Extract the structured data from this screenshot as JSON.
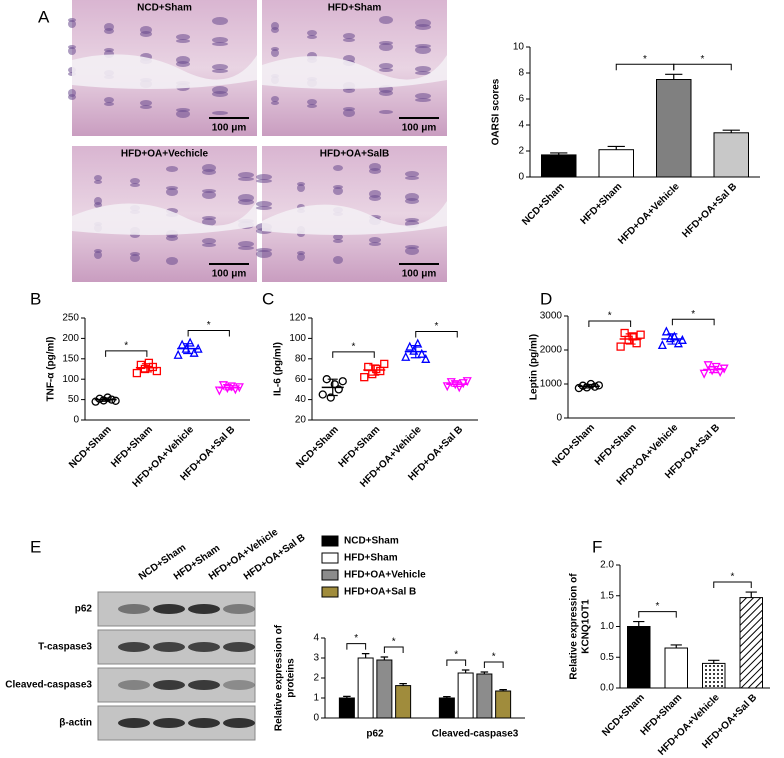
{
  "figure": {
    "panels": [
      "A",
      "B",
      "C",
      "D",
      "E",
      "F"
    ]
  },
  "micrographs": [
    {
      "label": "NCD+Sham",
      "scale": "100 μm"
    },
    {
      "label": "HFD+Sham",
      "scale": "100 μm"
    },
    {
      "label": "HFD+OA+Vechicle",
      "scale": "100 μm"
    },
    {
      "label": "HFD+OA+SalB",
      "scale": "100 μm"
    }
  ],
  "blot": {
    "lanes": [
      "NCD+Sham",
      "HFD+Sham",
      "HFD+OA+Vehicle",
      "HFD+OA+Sal B"
    ],
    "rows": [
      "p62",
      "T-caspase3",
      "Cleaved-caspase3",
      "β-actin"
    ]
  },
  "chart_data": [
    {
      "type": "bar",
      "ylabel": [
        "OARSI scores"
      ],
      "categories": [
        "NCD+Sham",
        "HFD+Sham",
        "HFD+OA+Vehicle",
        "HFD+OA+Sal B"
      ],
      "values": [
        1.7,
        2.1,
        7.5,
        3.4
      ],
      "errors": [
        0.15,
        0.25,
        0.4,
        0.2
      ],
      "colors": [
        "#000000",
        "#ffffff",
        "#808080",
        "#c8c8c8"
      ],
      "patterns": [
        "solid",
        "solid",
        "solid",
        "solid"
      ],
      "ylim": [
        0,
        10
      ],
      "yticks": [
        0,
        2,
        4,
        6,
        8,
        10
      ],
      "annotations": [
        "*",
        "*"
      ]
    },
    {
      "type": "dot",
      "ylabel": [
        "TNF-α (pg/ml)"
      ],
      "categories": [
        "NCD+Sham",
        "HFD+Sham",
        "HFD+OA+Vehicle",
        "HFD+OA+Sal B"
      ],
      "points": [
        [
          45,
          52,
          48,
          55,
          50,
          47
        ],
        [
          115,
          135,
          125,
          140,
          130,
          120
        ],
        [
          160,
          185,
          175,
          190,
          165,
          175
        ],
        [
          72,
          85,
          78,
          82,
          75,
          80
        ]
      ],
      "values": [
        50,
        128,
        175,
        79
      ],
      "errors": [
        4,
        10,
        12,
        5
      ],
      "colors": [
        "#000000",
        "#ff0000",
        "#0000ff",
        "#ff00ff"
      ],
      "markers": [
        "circle",
        "square",
        "triangle",
        "down-triangle"
      ],
      "ylim": [
        0,
        250
      ],
      "yticks": [
        0,
        50,
        100,
        150,
        200,
        250
      ],
      "annotations": [
        "*",
        "*"
      ]
    },
    {
      "type": "dot",
      "ylabel": [
        "IL-6 (pg/ml)"
      ],
      "categories": [
        "NCD+Sham",
        "HFD+Sham",
        "HFD+OA+Vehicle",
        "HFD+OA+Sal B"
      ],
      "points": [
        [
          45,
          60,
          42,
          55,
          50,
          58
        ],
        [
          62,
          72,
          65,
          70,
          68,
          75
        ],
        [
          82,
          92,
          88,
          95,
          85,
          80
        ],
        [
          53,
          57,
          55,
          52,
          56,
          58
        ]
      ],
      "values": [
        52,
        69,
        87,
        55
      ],
      "errors": [
        8,
        5,
        6,
        2
      ],
      "colors": [
        "#000000",
        "#ff0000",
        "#0000ff",
        "#ff00ff"
      ],
      "markers": [
        "circle",
        "square",
        "triangle",
        "down-triangle"
      ],
      "ylim": [
        20,
        120
      ],
      "yticks": [
        20,
        40,
        60,
        80,
        100,
        120
      ],
      "annotations": [
        "*",
        "*"
      ]
    },
    {
      "type": "dot",
      "ylabel": [
        "Leptin (pg/ml)"
      ],
      "categories": [
        "NCD+Sham",
        "HFD+Sham",
        "HFD+OA+Vehicle",
        "HFD+OA+Sal B"
      ],
      "points": [
        [
          880,
          950,
          900,
          1000,
          920,
          960
        ],
        [
          2100,
          2500,
          2300,
          2400,
          2200,
          2450
        ],
        [
          2150,
          2550,
          2350,
          2400,
          2200,
          2300
        ],
        [
          1300,
          1550,
          1400,
          1500,
          1350,
          1450
        ]
      ],
      "values": [
        935,
        2325,
        2325,
        1425
      ],
      "errors": [
        50,
        150,
        150,
        90
      ],
      "colors": [
        "#000000",
        "#ff0000",
        "#0000ff",
        "#ff00ff"
      ],
      "markers": [
        "circle",
        "square",
        "triangle",
        "down-triangle"
      ],
      "ylim": [
        0,
        3000
      ],
      "yticks": [
        0,
        1000,
        2000,
        3000
      ],
      "annotations": [
        "*",
        "*"
      ]
    },
    {
      "type": "grouped_bar",
      "ylabel": [
        "Relative expression of",
        "proteins"
      ],
      "categories": [
        "p62",
        "Cleaved-caspase3"
      ],
      "series": [
        {
          "name": "NCD+Sham",
          "color": "#000000",
          "values": [
            1.0,
            1.0
          ],
          "errors": [
            0.08,
            0.07
          ]
        },
        {
          "name": "HFD+Sham",
          "color": "#ffffff",
          "values": [
            3.0,
            2.25
          ],
          "errors": [
            0.22,
            0.15
          ]
        },
        {
          "name": "HFD+OA+Vehicle",
          "color": "#8c8c8c",
          "values": [
            2.9,
            2.2
          ],
          "errors": [
            0.15,
            0.1
          ]
        },
        {
          "name": "HFD+OA+Sal B",
          "color": "#a08c3c",
          "values": [
            1.62,
            1.35
          ],
          "errors": [
            0.1,
            0.07
          ]
        }
      ],
      "ylim": [
        0,
        4
      ],
      "yticks": [
        0,
        1,
        2,
        3,
        4
      ],
      "annotations": [
        "*",
        "*",
        "*",
        "*"
      ],
      "legend": "top"
    },
    {
      "type": "bar",
      "ylabel": [
        "Relative expression of",
        "KCNQ1OT1"
      ],
      "categories": [
        "NCD+Sham",
        "HFD+Sham",
        "HFD+OA+Vehicle",
        "HFD+OA+Sal B"
      ],
      "values": [
        1.0,
        0.65,
        0.4,
        1.47
      ],
      "errors": [
        0.08,
        0.05,
        0.05,
        0.09
      ],
      "colors": [
        "#000000",
        "#ffffff",
        "#ffffff",
        "#ffffff"
      ],
      "patterns": [
        "solid",
        "solid",
        "dots",
        "hatch"
      ],
      "ylim": [
        0,
        2
      ],
      "yticks": [
        {
          "value": 0,
          "label": "0.0"
        },
        {
          "value": 0.5,
          "label": "0.5"
        },
        {
          "value": 1,
          "label": "1.0"
        },
        {
          "value": 1.5,
          "label": "1.5"
        },
        {
          "value": 2,
          "label": "2.0"
        }
      ],
      "annotations": [
        "*",
        "*"
      ]
    }
  ]
}
